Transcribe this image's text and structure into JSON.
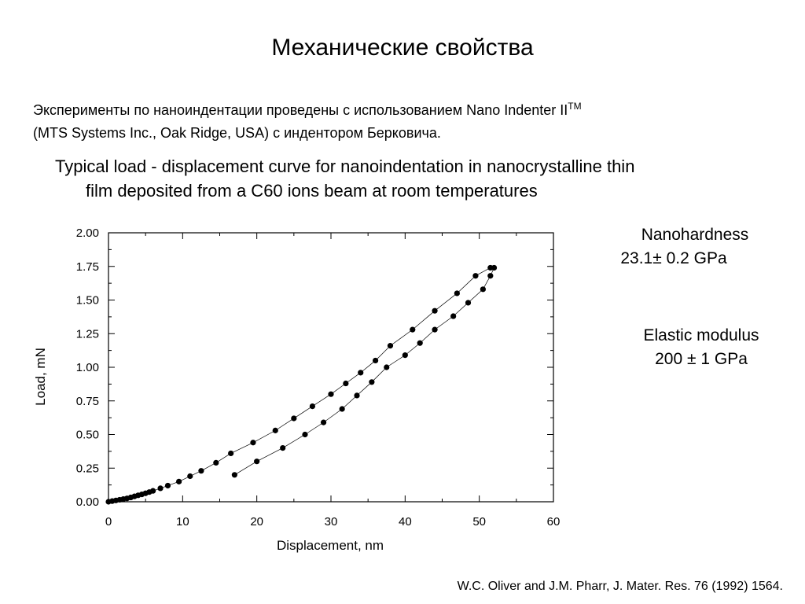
{
  "slide": {
    "title": "Механические свойства",
    "intro_line1": "Эксперименты по наноиндентации проведены с использованием Nano Indenter II",
    "intro_tm": "TM",
    "intro_line2": "(MTS Systems Inc., Oak Ridge, USA) с индентором Берковича.",
    "caption_line1": "Typical load - displacement curve for nanoindentation in nanocrystalline thin",
    "caption_line2": "film deposited from a C60 ions beam at room temperatures",
    "hardness_label": "Nanohardness",
    "hardness_value": "23.1± 0.2 GPa",
    "modulus_label": "Elastic modulus",
    "modulus_value": "200 ± 1 GPa",
    "reference": "W.C. Oliver and J.M. Pharr, J. Mater. Res. 76 (1992) 1564."
  },
  "chart_data": {
    "type": "scatter",
    "xlabel": "Displacement, nm",
    "ylabel": "Load, mN",
    "xlim": [
      0,
      60
    ],
    "ylim": [
      0,
      2.0
    ],
    "xticks": [
      "0",
      "10",
      "20",
      "30",
      "40",
      "50",
      "60"
    ],
    "yticks": [
      "0.00",
      "0.25",
      "0.50",
      "0.75",
      "1.00",
      "1.25",
      "1.50",
      "1.75",
      "2.00"
    ],
    "grid": false,
    "marker_color": "#000000",
    "line_color": "#000000",
    "series": [
      {
        "x": [
          0,
          0.5,
          1.0,
          1.5,
          2.0,
          2.5,
          3.0,
          3.5,
          4.0,
          4.5,
          5.0,
          5.5,
          6.0,
          7.0,
          8.0,
          9.5,
          11.0,
          12.5,
          14.5,
          16.5,
          19.5,
          22.5,
          25.0,
          27.5,
          30.0,
          32.0,
          34.0,
          36.0,
          38.0,
          41.0,
          44.0,
          47.0,
          49.5,
          51.5
        ],
        "y": [
          0,
          0.005,
          0.01,
          0.015,
          0.02,
          0.025,
          0.032,
          0.04,
          0.048,
          0.055,
          0.063,
          0.072,
          0.081,
          0.1,
          0.12,
          0.15,
          0.19,
          0.23,
          0.29,
          0.36,
          0.44,
          0.53,
          0.62,
          0.71,
          0.8,
          0.88,
          0.96,
          1.05,
          1.16,
          1.28,
          1.42,
          1.55,
          1.68,
          1.74
        ]
      },
      {
        "x": [
          52.0,
          51.5,
          50.5,
          48.5,
          46.5,
          44.0,
          42.0,
          40.0,
          37.5,
          35.5,
          33.5,
          31.5,
          29.0,
          26.5,
          23.5,
          20.0,
          17.0
        ],
        "y": [
          1.74,
          1.68,
          1.58,
          1.48,
          1.38,
          1.28,
          1.18,
          1.09,
          1.0,
          0.89,
          0.79,
          0.69,
          0.59,
          0.5,
          0.4,
          0.3,
          0.2
        ]
      }
    ]
  }
}
